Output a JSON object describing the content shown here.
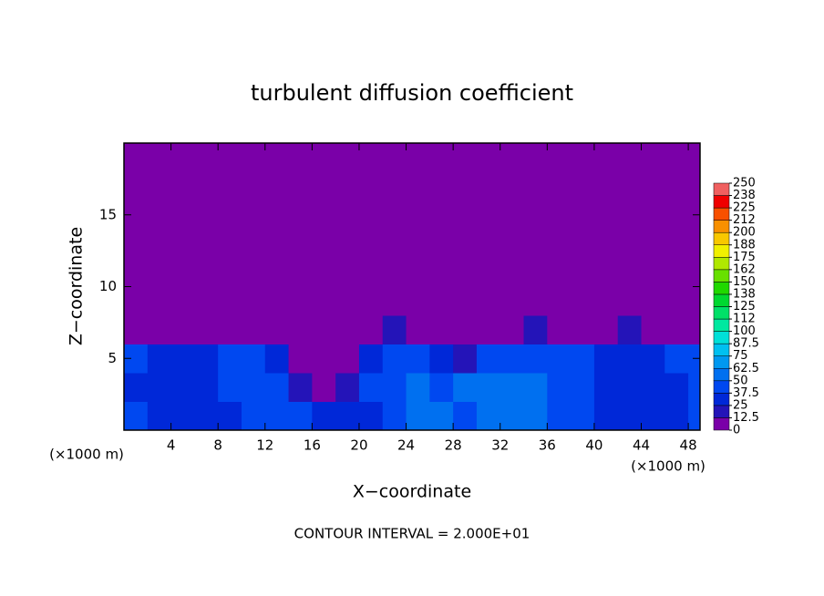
{
  "chart_data": {
    "type": "contour",
    "title": "turbulent diffusion coefficient",
    "x_label": "X−coordinate",
    "y_label": "Z−coordinate",
    "x_unit_left": "(×1000 m)",
    "x_unit_right": "(×1000 m)",
    "note": "CONTOUR INTERVAL = 2.000E+01",
    "xlim": [
      0,
      49
    ],
    "ylim": [
      0,
      20
    ],
    "xticks": [
      4,
      8,
      12,
      16,
      20,
      24,
      28,
      32,
      36,
      40,
      44,
      48
    ],
    "yticks": [
      5,
      10,
      15
    ],
    "levels": [
      0,
      12.5,
      25,
      37.5,
      50,
      62.5,
      75,
      87.5,
      100,
      {
        "value": 112.5,
        "label": "112"
      },
      125,
      {
        "value": 137.5,
        "label": "138"
      },
      150,
      {
        "value": 162.5,
        "label": "162"
      },
      175,
      {
        "value": 187.5,
        "label": "188"
      },
      200,
      {
        "value": 212.5,
        "label": "212"
      },
      225,
      {
        "value": 237.5,
        "label": "238"
      },
      250
    ],
    "colors": [
      "#7a00a8",
      "#2414b8",
      "#0028d8",
      "#0048f0",
      "#0070f0",
      "#0098f0",
      "#00c0f0",
      "#00e0d8",
      "#00e8a0",
      "#00e068",
      "#00d830",
      "#20d800",
      "#68e000",
      "#b0e800",
      "#f0f000",
      "#f8c800",
      "#f89000",
      "#f85000",
      "#f00000",
      "#f06060"
    ],
    "field": {
      "x": [
        1,
        3,
        5,
        7,
        9,
        11,
        13,
        15,
        17,
        19,
        21,
        23,
        25,
        27,
        29,
        31,
        33,
        35,
        37,
        39,
        41,
        43,
        45,
        47,
        49
      ],
      "z": [
        1,
        3,
        5,
        7,
        9,
        11,
        13,
        15,
        17,
        19
      ],
      "values": [
        [
          40,
          35,
          30,
          30,
          35,
          40,
          45,
          40,
          30,
          25,
          35,
          45,
          50,
          55,
          45,
          55,
          60,
          55,
          45,
          40,
          35,
          30,
          30,
          35,
          40
        ],
        [
          35,
          25,
          25,
          30,
          40,
          45,
          40,
          20,
          10,
          15,
          40,
          45,
          50,
          45,
          55,
          55,
          50,
          55,
          45,
          40,
          30,
          25,
          25,
          30,
          40
        ],
        [
          40,
          35,
          35,
          35,
          40,
          40,
          30,
          5,
          5,
          5,
          30,
          40,
          40,
          35,
          20,
          40,
          45,
          40,
          40,
          40,
          35,
          35,
          35,
          40,
          40
        ],
        [
          10,
          5,
          5,
          5,
          5,
          5,
          5,
          0,
          0,
          0,
          5,
          15,
          10,
          5,
          5,
          5,
          10,
          15,
          5,
          5,
          10,
          15,
          10,
          5,
          5
        ],
        [
          0,
          0,
          0,
          0,
          0,
          0,
          0,
          0,
          0,
          0,
          0,
          0,
          0,
          0,
          0,
          0,
          0,
          0,
          0,
          0,
          0,
          0,
          0,
          0,
          0
        ],
        [
          0,
          0,
          0,
          0,
          0,
          0,
          0,
          0,
          0,
          0,
          0,
          0,
          0,
          0,
          0,
          0,
          0,
          0,
          0,
          0,
          0,
          0,
          0,
          0,
          0
        ],
        [
          0,
          0,
          0,
          0,
          0,
          0,
          0,
          0,
          0,
          0,
          0,
          0,
          0,
          0,
          0,
          0,
          0,
          0,
          0,
          0,
          0,
          0,
          0,
          0,
          0
        ],
        [
          0,
          0,
          0,
          0,
          0,
          0,
          0,
          0,
          0,
          0,
          0,
          0,
          0,
          0,
          0,
          0,
          0,
          0,
          0,
          0,
          0,
          0,
          0,
          0,
          0
        ],
        [
          0,
          0,
          0,
          0,
          0,
          0,
          0,
          0,
          0,
          0,
          0,
          0,
          0,
          0,
          0,
          0,
          0,
          0,
          0,
          0,
          0,
          0,
          0,
          0,
          0
        ],
        [
          0,
          0,
          0,
          0,
          0,
          0,
          0,
          0,
          0,
          0,
          0,
          0,
          0,
          0,
          0,
          0,
          0,
          0,
          0,
          0,
          0,
          0,
          0,
          0,
          0
        ]
      ]
    }
  }
}
